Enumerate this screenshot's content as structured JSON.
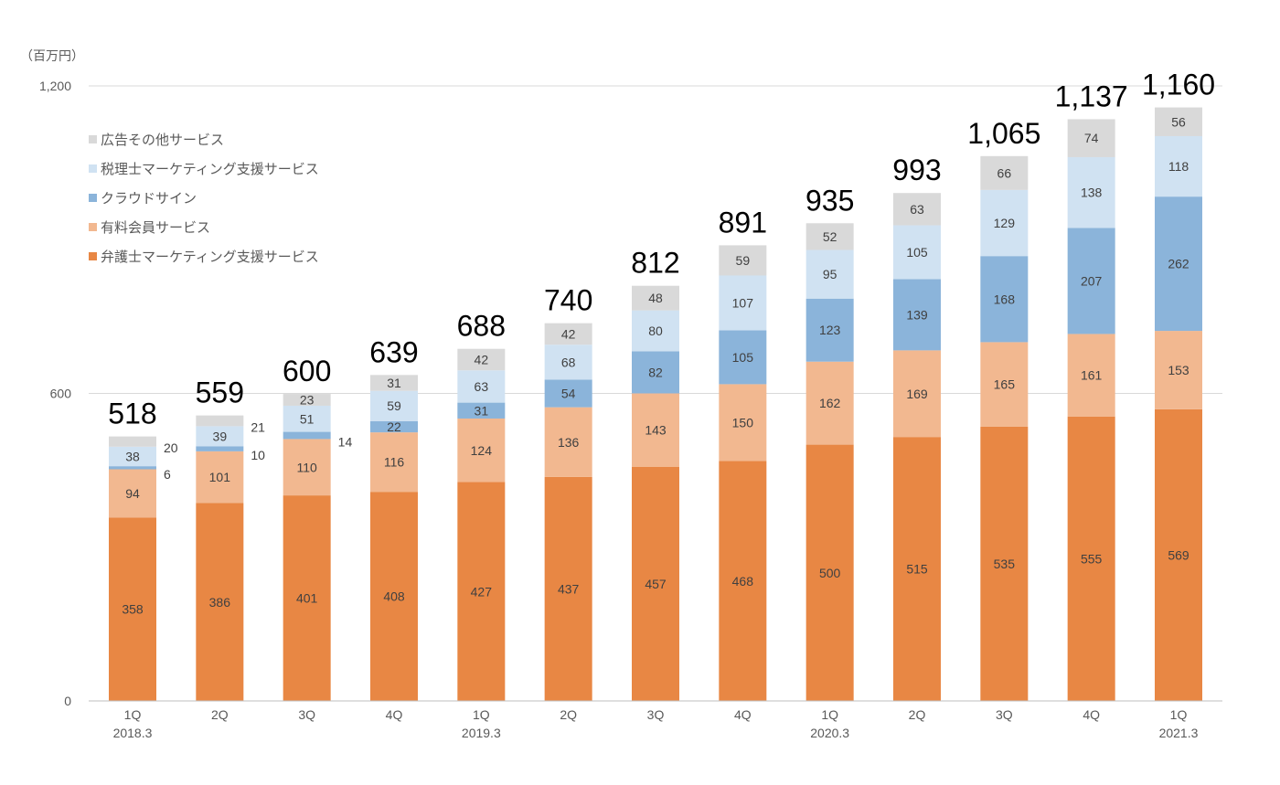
{
  "chart_data": {
    "type": "bar",
    "stacked": true,
    "unit_label": "（百万円）",
    "categories": [
      {
        "q": "1Q",
        "fy": "2018.3"
      },
      {
        "q": "2Q",
        "fy": ""
      },
      {
        "q": "3Q",
        "fy": ""
      },
      {
        "q": "4Q",
        "fy": ""
      },
      {
        "q": "1Q",
        "fy": "2019.3"
      },
      {
        "q": "2Q",
        "fy": ""
      },
      {
        "q": "3Q",
        "fy": ""
      },
      {
        "q": "4Q",
        "fy": ""
      },
      {
        "q": "1Q",
        "fy": "2020.3"
      },
      {
        "q": "2Q",
        "fy": ""
      },
      {
        "q": "3Q",
        "fy": ""
      },
      {
        "q": "4Q",
        "fy": ""
      },
      {
        "q": "1Q",
        "fy": "2021.3"
      }
    ],
    "series": [
      {
        "name": "弁護士マーケティング支援サービス",
        "color": "#E88744",
        "values": [
          358,
          386,
          401,
          408,
          427,
          437,
          457,
          468,
          500,
          515,
          535,
          555,
          569
        ]
      },
      {
        "name": "有料会員サービス",
        "color": "#F2B890",
        "values": [
          94,
          101,
          110,
          116,
          124,
          136,
          143,
          150,
          162,
          169,
          165,
          161,
          153
        ]
      },
      {
        "name": "クラウドサイン",
        "color": "#8BB4DA",
        "values": [
          6,
          10,
          14,
          22,
          31,
          54,
          82,
          105,
          123,
          139,
          168,
          207,
          262
        ]
      },
      {
        "name": "税理士マーケティング支援サービス",
        "color": "#D0E2F2",
        "values": [
          38,
          39,
          51,
          59,
          63,
          68,
          80,
          107,
          95,
          105,
          129,
          138,
          118
        ]
      },
      {
        "name": "広告その他サービス",
        "color": "#D9D9D9",
        "values": [
          20,
          21,
          23,
          31,
          42,
          42,
          48,
          59,
          52,
          63,
          66,
          74,
          56
        ]
      }
    ],
    "totals": [
      "518",
      "559",
      "600",
      "639",
      "688",
      "740",
      "812",
      "891",
      "935",
      "993",
      "1,065",
      "1,137",
      "1,160"
    ],
    "yticks": [
      {
        "value": 0,
        "label": "0"
      },
      {
        "value": 600,
        "label": "600"
      },
      {
        "value": 1200,
        "label": "1,200"
      }
    ],
    "ylim": [
      0,
      1200
    ],
    "grid": true,
    "legend_placement": "top-left",
    "legend_order": [
      4,
      3,
      2,
      1,
      0
    ]
  }
}
